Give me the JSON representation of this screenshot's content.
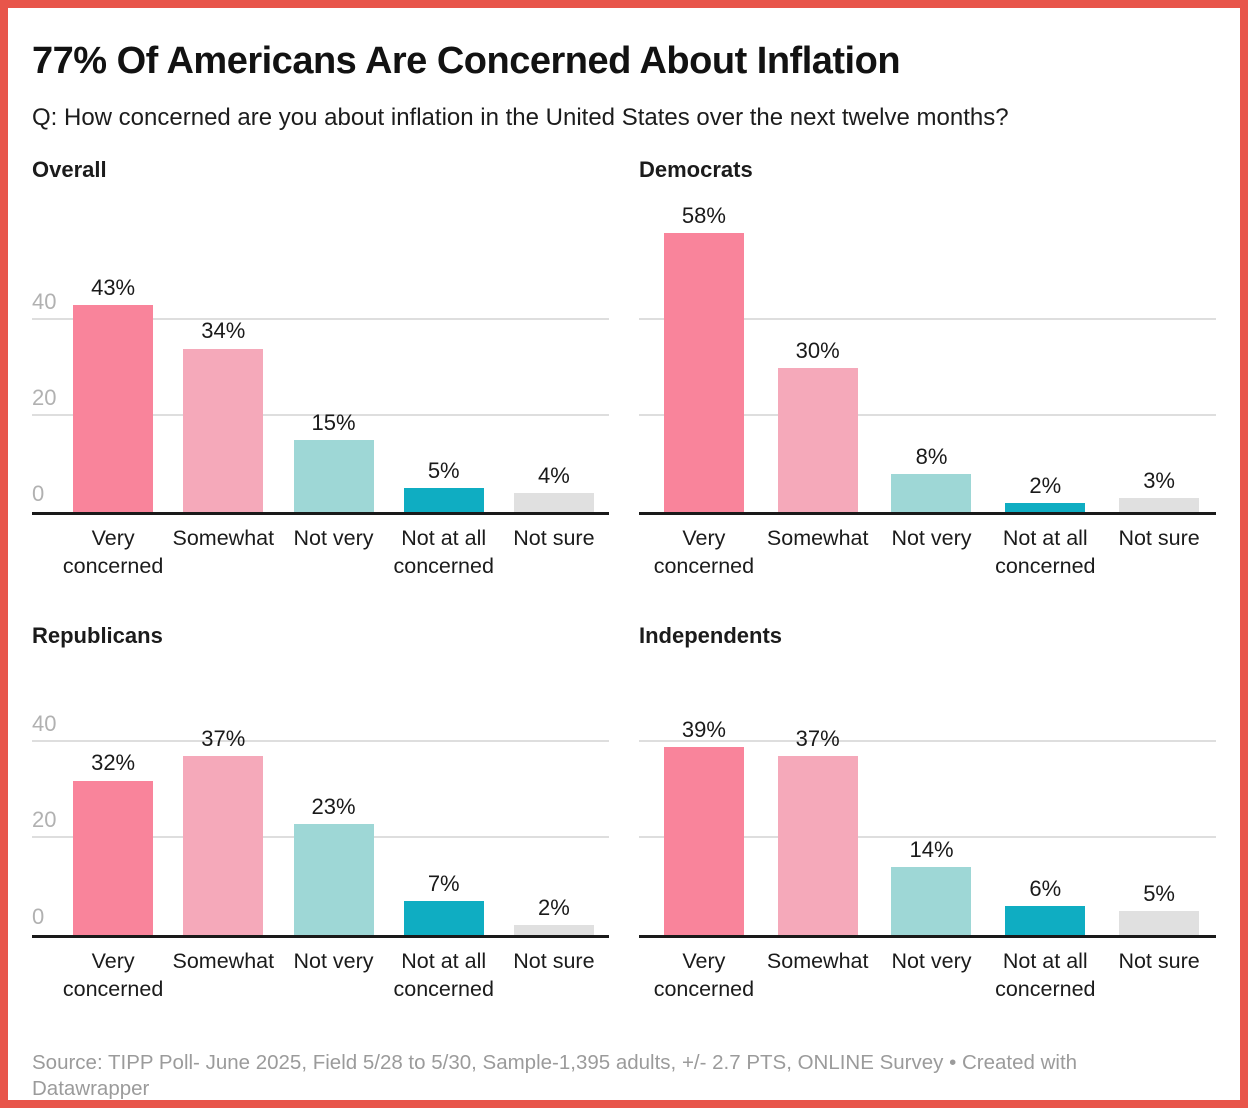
{
  "header": {
    "title": "77% Of Americans Are Concerned About Inflation",
    "subtitle": "Q: How concerned are you about inflation in the United States over the next twelve months?"
  },
  "footer": {
    "source": "Source: TIPP Poll- June 2025, Field 5/28 to 5/30, Sample-1,395 adults, +/- 2.7 PTS, ONLINE Survey • Created with Datawrapper"
  },
  "colors": {
    "frame_border": "#e8554a",
    "very_concerned": "#f9849b",
    "somewhat": "#f5a9ba",
    "not_very": "#9ed7d6",
    "not_at_all_concerned": "#0fadc2",
    "not_sure": "#e0e0e0",
    "gridline": "#dedede",
    "axis_line": "#1a1a1a",
    "tick_label": "#b1b1b1",
    "footer_text": "#9b9b9b"
  },
  "chart_data": {
    "type": "bar",
    "title": "77% Of Americans Are Concerned About Inflation",
    "subtitle": "Q: How concerned are you about inflation in the United States over the next twelve months?",
    "layout": "small-multiples 2x2",
    "grid": true,
    "legend": "none",
    "unit": "%",
    "ylim": [
      0,
      60
    ],
    "yticks": [
      0,
      20,
      40
    ],
    "ytick_labels": [
      "0",
      "20",
      "40"
    ],
    "categories": [
      "Very concerned",
      "Somewhat",
      "Not very",
      "Not at all concerned",
      "Not sure"
    ],
    "bar_colors": [
      "#f9849b",
      "#f5a9ba",
      "#9ed7d6",
      "#0fadc2",
      "#e0e0e0"
    ],
    "panels": [
      {
        "name": "Overall",
        "values": [
          43,
          34,
          15,
          5,
          4
        ],
        "labels": [
          "43%",
          "34%",
          "15%",
          "5%",
          "4%"
        ],
        "show_y_ticks": true
      },
      {
        "name": "Democrats",
        "values": [
          58,
          30,
          8,
          2,
          3
        ],
        "labels": [
          "58%",
          "30%",
          "8%",
          "2%",
          "3%"
        ],
        "show_y_ticks": false
      },
      {
        "name": "Republicans",
        "values": [
          32,
          37,
          23,
          7,
          2
        ],
        "labels": [
          "32%",
          "37%",
          "23%",
          "7%",
          "2%"
        ],
        "show_y_ticks": true
      },
      {
        "name": "Independents",
        "values": [
          39,
          37,
          14,
          6,
          5
        ],
        "labels": [
          "39%",
          "37%",
          "14%",
          "6%",
          "5%"
        ],
        "show_y_ticks": false
      }
    ]
  }
}
